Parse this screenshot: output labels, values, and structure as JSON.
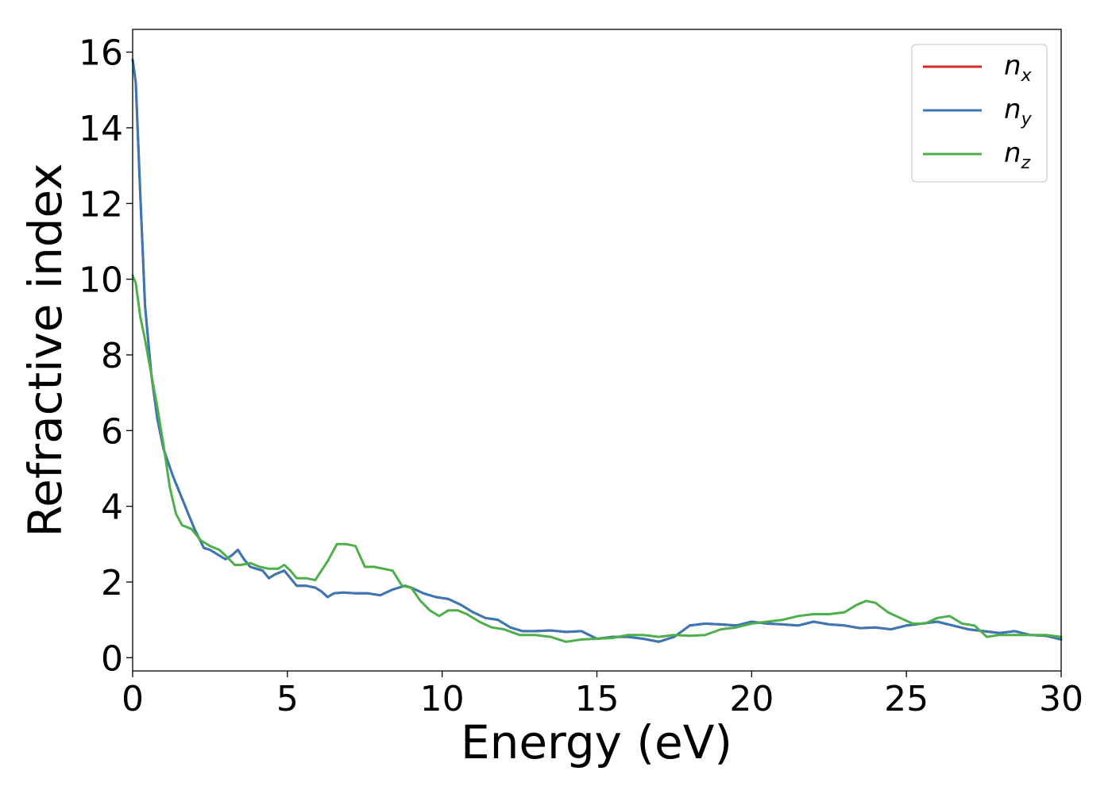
{
  "chart_data": {
    "type": "line",
    "title": "",
    "xlabel": "Energy (eV)",
    "ylabel": "Refractive index",
    "xlim": [
      0,
      30
    ],
    "ylim": [
      -0.35,
      16.6
    ],
    "xticks": [
      0,
      5,
      10,
      15,
      20,
      25,
      30
    ],
    "yticks": [
      0,
      2,
      4,
      6,
      8,
      10,
      12,
      14,
      16
    ],
    "grid": false,
    "legend_position": "top-right",
    "colors": {
      "nx": "#d62728",
      "ny": "#3a78b5",
      "nz": "#4daf4a"
    },
    "series": [
      {
        "key": "nx",
        "name_main": "n",
        "name_sub": "x",
        "x": [
          0,
          0.1,
          0.25,
          0.4,
          0.6,
          0.8,
          1.0,
          1.3,
          1.6,
          2.0,
          2.3,
          2.5,
          2.8,
          3.0,
          3.2,
          3.4,
          3.6,
          3.8,
          4.0,
          4.2,
          4.4,
          4.6,
          4.9,
          5.1,
          5.3,
          5.6,
          5.9,
          6.1,
          6.3,
          6.5,
          6.8,
          7.2,
          7.6,
          8.0,
          8.4,
          8.8,
          9.0,
          9.4,
          9.8,
          10.2,
          10.6,
          11.0,
          11.4,
          11.8,
          12.2,
          12.6,
          13.0,
          13.5,
          14.0,
          14.5,
          15.0,
          15.5,
          16.0,
          16.5,
          17.0,
          17.5,
          18.0,
          18.5,
          19.0,
          19.5,
          20.0,
          20.5,
          21.0,
          21.5,
          22.0,
          22.5,
          23.0,
          23.5,
          24.0,
          24.5,
          25.0,
          25.5,
          26.0,
          26.5,
          27.0,
          27.5,
          28.0,
          28.5,
          29.0,
          29.5,
          30.0
        ],
        "y": [
          15.8,
          15.2,
          12.2,
          9.3,
          7.5,
          6.3,
          5.5,
          4.8,
          4.2,
          3.4,
          2.9,
          2.85,
          2.7,
          2.6,
          2.7,
          2.85,
          2.6,
          2.4,
          2.35,
          2.3,
          2.1,
          2.2,
          2.3,
          2.1,
          1.9,
          1.9,
          1.85,
          1.75,
          1.6,
          1.7,
          1.72,
          1.7,
          1.7,
          1.65,
          1.8,
          1.9,
          1.85,
          1.7,
          1.6,
          1.55,
          1.4,
          1.2,
          1.05,
          1.0,
          0.8,
          0.7,
          0.7,
          0.72,
          0.68,
          0.7,
          0.5,
          0.55,
          0.55,
          0.5,
          0.42,
          0.55,
          0.85,
          0.9,
          0.88,
          0.85,
          0.95,
          0.9,
          0.88,
          0.85,
          0.95,
          0.88,
          0.85,
          0.78,
          0.8,
          0.75,
          0.85,
          0.9,
          0.95,
          0.85,
          0.75,
          0.7,
          0.65,
          0.7,
          0.6,
          0.58,
          0.48
        ]
      },
      {
        "key": "ny",
        "name_main": "n",
        "name_sub": "y",
        "x": [
          0,
          0.1,
          0.25,
          0.4,
          0.6,
          0.8,
          1.0,
          1.3,
          1.6,
          2.0,
          2.3,
          2.5,
          2.8,
          3.0,
          3.2,
          3.4,
          3.6,
          3.8,
          4.0,
          4.2,
          4.4,
          4.6,
          4.9,
          5.1,
          5.3,
          5.6,
          5.9,
          6.1,
          6.3,
          6.5,
          6.8,
          7.2,
          7.6,
          8.0,
          8.4,
          8.8,
          9.0,
          9.4,
          9.8,
          10.2,
          10.6,
          11.0,
          11.4,
          11.8,
          12.2,
          12.6,
          13.0,
          13.5,
          14.0,
          14.5,
          15.0,
          15.5,
          16.0,
          16.5,
          17.0,
          17.5,
          18.0,
          18.5,
          19.0,
          19.5,
          20.0,
          20.5,
          21.0,
          21.5,
          22.0,
          22.5,
          23.0,
          23.5,
          24.0,
          24.5,
          25.0,
          25.5,
          26.0,
          26.5,
          27.0,
          27.5,
          28.0,
          28.5,
          29.0,
          29.5,
          30.0
        ],
        "y": [
          15.8,
          15.2,
          12.2,
          9.3,
          7.5,
          6.3,
          5.5,
          4.8,
          4.2,
          3.4,
          2.9,
          2.85,
          2.7,
          2.6,
          2.7,
          2.85,
          2.6,
          2.4,
          2.35,
          2.3,
          2.1,
          2.2,
          2.3,
          2.1,
          1.9,
          1.9,
          1.85,
          1.75,
          1.6,
          1.7,
          1.72,
          1.7,
          1.7,
          1.65,
          1.8,
          1.9,
          1.85,
          1.7,
          1.6,
          1.55,
          1.4,
          1.2,
          1.05,
          1.0,
          0.8,
          0.7,
          0.7,
          0.72,
          0.68,
          0.7,
          0.5,
          0.55,
          0.55,
          0.5,
          0.42,
          0.55,
          0.85,
          0.9,
          0.88,
          0.85,
          0.95,
          0.9,
          0.88,
          0.85,
          0.95,
          0.88,
          0.85,
          0.78,
          0.8,
          0.75,
          0.85,
          0.9,
          0.95,
          0.85,
          0.75,
          0.7,
          0.65,
          0.7,
          0.6,
          0.58,
          0.48
        ]
      },
      {
        "key": "nz",
        "name_main": "n",
        "name_sub": "z",
        "x": [
          0,
          0.1,
          0.25,
          0.4,
          0.6,
          0.8,
          1.0,
          1.2,
          1.4,
          1.6,
          1.9,
          2.2,
          2.5,
          2.8,
          3.0,
          3.3,
          3.5,
          3.8,
          4.1,
          4.4,
          4.7,
          4.9,
          5.1,
          5.3,
          5.6,
          5.9,
          6.1,
          6.3,
          6.6,
          6.9,
          7.2,
          7.5,
          7.8,
          8.1,
          8.4,
          8.7,
          9.0,
          9.3,
          9.6,
          9.9,
          10.2,
          10.5,
          10.8,
          11.2,
          11.6,
          12.0,
          12.5,
          13.0,
          13.5,
          14.0,
          14.5,
          15.0,
          15.5,
          16.0,
          16.5,
          17.0,
          17.5,
          18.0,
          18.5,
          19.0,
          19.5,
          20.0,
          20.5,
          21.0,
          21.5,
          22.0,
          22.5,
          23.0,
          23.4,
          23.7,
          24.0,
          24.4,
          24.8,
          25.2,
          25.6,
          26.0,
          26.4,
          26.8,
          27.2,
          27.6,
          28.0,
          28.5,
          29.0,
          29.5,
          30.0
        ],
        "y": [
          10.1,
          9.9,
          9.0,
          8.4,
          7.5,
          6.6,
          5.6,
          4.5,
          3.8,
          3.5,
          3.4,
          3.1,
          2.95,
          2.85,
          2.7,
          2.45,
          2.45,
          2.5,
          2.4,
          2.35,
          2.35,
          2.45,
          2.3,
          2.1,
          2.1,
          2.05,
          2.3,
          2.55,
          3.0,
          3.0,
          2.95,
          2.4,
          2.4,
          2.35,
          2.3,
          1.9,
          1.85,
          1.5,
          1.25,
          1.1,
          1.25,
          1.25,
          1.15,
          0.95,
          0.8,
          0.75,
          0.6,
          0.6,
          0.55,
          0.42,
          0.48,
          0.5,
          0.52,
          0.6,
          0.6,
          0.55,
          0.6,
          0.58,
          0.6,
          0.75,
          0.8,
          0.9,
          0.95,
          1.0,
          1.1,
          1.15,
          1.15,
          1.2,
          1.4,
          1.5,
          1.45,
          1.2,
          1.05,
          0.9,
          0.9,
          1.05,
          1.1,
          0.9,
          0.85,
          0.55,
          0.6,
          0.6,
          0.6,
          0.6,
          0.55
        ]
      }
    ]
  }
}
